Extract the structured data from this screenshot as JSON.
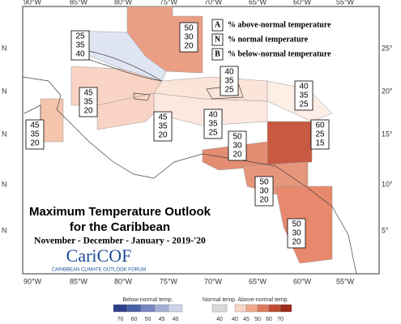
{
  "title": {
    "line1": "Maximum Temperature Outlook",
    "line2": "for the Caribbean",
    "period": "November - December - January - 2019-'20"
  },
  "logo": {
    "name": "CariCOF",
    "tagline": "CARIBBEAN CLIMATE OUTLOOK FORUM"
  },
  "key": [
    {
      "letter": "A",
      "text": "% above-normal temperature"
    },
    {
      "letter": "N",
      "text": "% normal temperature"
    },
    {
      "letter": "B",
      "text": "% below-normal temperature"
    }
  ],
  "lon_labels": [
    "90°W",
    "85°W",
    "80°W",
    "75°W",
    "70°W",
    "65°W",
    "60°W",
    "55°W"
  ],
  "lat_labels": [
    "25°",
    "20°",
    "15°",
    "10°",
    "5°"
  ],
  "left_lat_labels": [
    "N",
    "N",
    "N",
    "N",
    "N"
  ],
  "regions": [
    {
      "above": 50,
      "normal": 30,
      "below": 20,
      "color": "#ea9e84"
    },
    {
      "above": 25,
      "normal": 35,
      "below": 40,
      "color": "#dfe5f2"
    },
    {
      "above": 45,
      "normal": 35,
      "below": 20,
      "color": "#f9d3c3"
    },
    {
      "above": 45,
      "normal": 35,
      "below": 20,
      "color": "#f6c5ad"
    },
    {
      "above": 40,
      "normal": 35,
      "below": 25,
      "color": "#fbe4d8"
    },
    {
      "above": 40,
      "normal": 35,
      "below": 25,
      "color": "#fdeee6"
    },
    {
      "above": 40,
      "normal": 35,
      "below": 25,
      "color": "#fce8de"
    },
    {
      "above": 45,
      "normal": 35,
      "below": 20,
      "color": "#f9d3c3"
    },
    {
      "above": 60,
      "normal": 25,
      "below": 15,
      "color": "#c75a40"
    },
    {
      "above": 50,
      "normal": 30,
      "below": 20,
      "color": "#e38d72"
    },
    {
      "above": 50,
      "normal": 30,
      "below": 20,
      "color": "#e6967b"
    },
    {
      "above": 50,
      "normal": 30,
      "below": 20,
      "color": "#e8886c"
    }
  ],
  "colorbar": {
    "below": {
      "label": "Below-normal temp.",
      "ticks": [
        70,
        60,
        50,
        45,
        40
      ],
      "colors": [
        "#2d3e8c",
        "#4a5fa8",
        "#7585c0",
        "#a3aed6",
        "#cdd3ea"
      ]
    },
    "normal": {
      "label": "Normal temp.",
      "ticks": [
        40
      ],
      "colors": [
        "#d9d9d9"
      ]
    },
    "above": {
      "label": "Above-normal temp.",
      "ticks": [
        40,
        45,
        50,
        60,
        70
      ],
      "colors": [
        "#f9d5c5",
        "#f0a88d",
        "#dc7a5c",
        "#c24a2e",
        "#9e2a17"
      ]
    }
  }
}
